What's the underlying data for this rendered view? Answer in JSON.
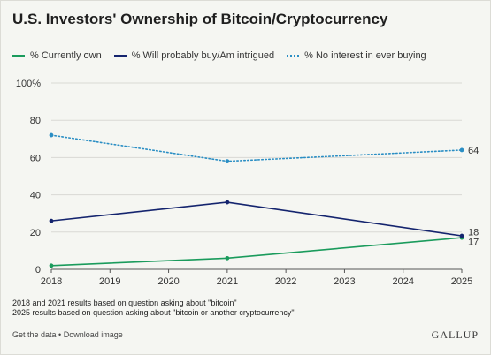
{
  "chart_data": {
    "type": "line",
    "title": "U.S. Investors' Ownership of Bitcoin/Cryptocurrency",
    "x": [
      2018,
      2021,
      2025
    ],
    "x_ticks": [
      "2018",
      "2019",
      "2020",
      "2021",
      "2022",
      "2023",
      "2024",
      "2025"
    ],
    "y_ticks": [
      "0",
      "20",
      "40",
      "60",
      "80",
      "100%"
    ],
    "xlim": [
      2018,
      2025
    ],
    "ylim": [
      0,
      100
    ],
    "grid": true,
    "legend_position": "top",
    "series": [
      {
        "name": "% Currently own",
        "values": [
          2,
          6,
          17
        ],
        "end_label": "17",
        "color": "#1a9b5c",
        "style": "solid"
      },
      {
        "name": "% Will probably buy/Am intrigued",
        "values": [
          26,
          36,
          18
        ],
        "end_label": "18",
        "color": "#14246e",
        "style": "solid"
      },
      {
        "name": "% No interest in ever buying",
        "values": [
          72,
          58,
          64
        ],
        "end_label": "64",
        "color": "#2a8ec4",
        "style": "dotted"
      }
    ]
  },
  "notes": [
    "2018 and 2021 results based on question asking about \"bitcoin\"",
    "2025 results based on question asking about \"bitcoin or another cryptocurrency\""
  ],
  "footer": {
    "get_data": "Get the data",
    "separator": " • ",
    "download": "Download image",
    "brand": "GALLUP"
  }
}
